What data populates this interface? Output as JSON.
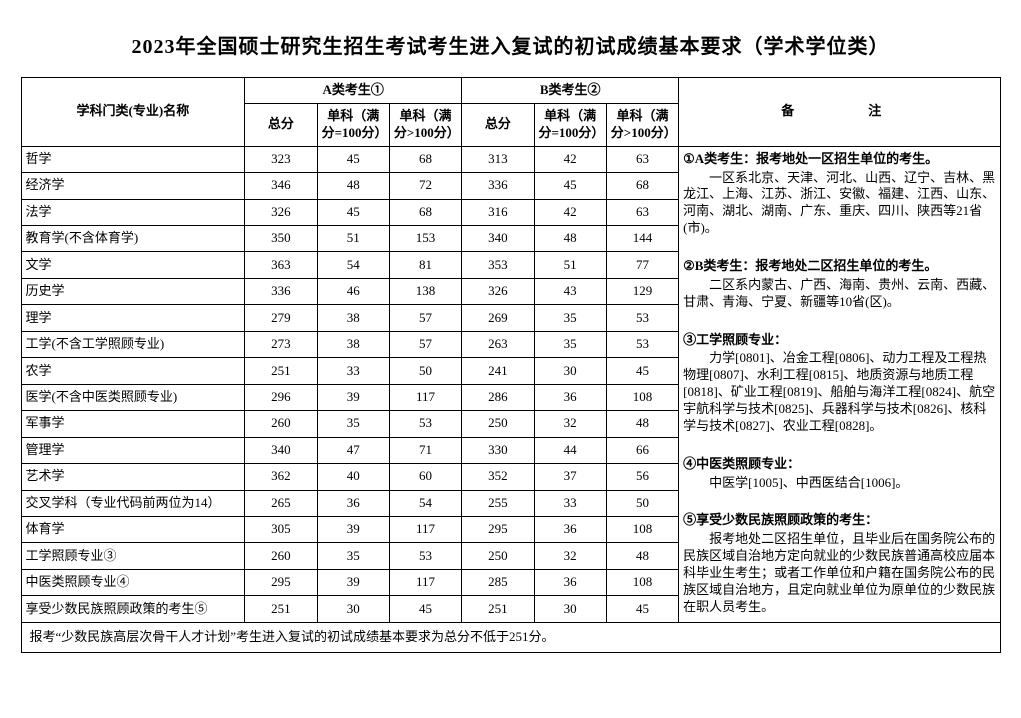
{
  "title": "2023年全国硕士研究生招生考试考生进入复试的初试成绩基本要求（学术学位类）",
  "headers": {
    "subject": "学科门类(专业)名称",
    "groupA": "A类考生①",
    "groupB": "B类考生②",
    "total": "总分",
    "sub100": "单科（满分=100分）",
    "subOver100": "单科（满分>100分）",
    "notes": "备　　注"
  },
  "rows": [
    {
      "name": "哲学",
      "a": [
        "323",
        "45",
        "68"
      ],
      "b": [
        "313",
        "42",
        "63"
      ]
    },
    {
      "name": "经济学",
      "a": [
        "346",
        "48",
        "72"
      ],
      "b": [
        "336",
        "45",
        "68"
      ]
    },
    {
      "name": "法学",
      "a": [
        "326",
        "45",
        "68"
      ],
      "b": [
        "316",
        "42",
        "63"
      ]
    },
    {
      "name": "教育学(不含体育学)",
      "a": [
        "350",
        "51",
        "153"
      ],
      "b": [
        "340",
        "48",
        "144"
      ]
    },
    {
      "name": "文学",
      "a": [
        "363",
        "54",
        "81"
      ],
      "b": [
        "353",
        "51",
        "77"
      ]
    },
    {
      "name": "历史学",
      "a": [
        "336",
        "46",
        "138"
      ],
      "b": [
        "326",
        "43",
        "129"
      ]
    },
    {
      "name": "理学",
      "a": [
        "279",
        "38",
        "57"
      ],
      "b": [
        "269",
        "35",
        "53"
      ]
    },
    {
      "name": "工学(不含工学照顾专业)",
      "a": [
        "273",
        "38",
        "57"
      ],
      "b": [
        "263",
        "35",
        "53"
      ]
    },
    {
      "name": "农学",
      "a": [
        "251",
        "33",
        "50"
      ],
      "b": [
        "241",
        "30",
        "45"
      ]
    },
    {
      "name": "医学(不含中医类照顾专业)",
      "a": [
        "296",
        "39",
        "117"
      ],
      "b": [
        "286",
        "36",
        "108"
      ]
    },
    {
      "name": "军事学",
      "a": [
        "260",
        "35",
        "53"
      ],
      "b": [
        "250",
        "32",
        "48"
      ]
    },
    {
      "name": "管理学",
      "a": [
        "340",
        "47",
        "71"
      ],
      "b": [
        "330",
        "44",
        "66"
      ]
    },
    {
      "name": "艺术学",
      "a": [
        "362",
        "40",
        "60"
      ],
      "b": [
        "352",
        "37",
        "56"
      ]
    },
    {
      "name": "交叉学科（专业代码前两位为14）",
      "a": [
        "265",
        "36",
        "54"
      ],
      "b": [
        "255",
        "33",
        "50"
      ]
    },
    {
      "name": "体育学",
      "a": [
        "305",
        "39",
        "117"
      ],
      "b": [
        "295",
        "36",
        "108"
      ]
    },
    {
      "name": "工学照顾专业③",
      "a": [
        "260",
        "35",
        "53"
      ],
      "b": [
        "250",
        "32",
        "48"
      ]
    },
    {
      "name": "中医类照顾专业④",
      "a": [
        "295",
        "39",
        "117"
      ],
      "b": [
        "285",
        "36",
        "108"
      ]
    },
    {
      "name": "享受少数民族照顾政策的考生⑤",
      "a": [
        "251",
        "30",
        "45"
      ],
      "b": [
        "251",
        "30",
        "45"
      ]
    }
  ],
  "footnote": "报考“少数民族高层次骨干人才计划”考生进入复试的初试成绩基本要求为总分不低于251分。",
  "notes": {
    "n1_lead": "①A类考生：报考地处一区招生单位的考生。",
    "n1_body": "一区系北京、天津、河北、山西、辽宁、吉林、黑龙江、上海、江苏、浙江、安徽、福建、江西、山东、河南、湖北、湖南、广东、重庆、四川、陕西等21省(市)。",
    "n2_lead": "②B类考生：报考地处二区招生单位的考生。",
    "n2_body": "二区系内蒙古、广西、海南、贵州、云南、西藏、甘肃、青海、宁夏、新疆等10省(区)。",
    "n3_lead": "③工学照顾专业：",
    "n3_body": "力学[0801]、冶金工程[0806]、动力工程及工程热物理[0807]、水利工程[0815]、地质资源与地质工程[0818]、矿业工程[0819]、船舶与海洋工程[0824]、航空宇航科学与技术[0825]、兵器科学与技术[0826]、核科学与技术[0827]、农业工程[0828]。",
    "n4_lead": "④中医类照顾专业：",
    "n4_body": "中医学[1005]、中西医结合[1006]。",
    "n5_lead": "⑤享受少数民族照顾政策的考生：",
    "n5_body": "报考地处二区招生单位，且毕业后在国务院公布的民族区域自治地方定向就业的少数民族普通高校应届本科毕业生考生；或者工作单位和户籍在国务院公布的民族区域自治地方，且定向就业单位为原单位的少数民族在职人员考生。"
  },
  "style": {
    "border_color": "#000000",
    "background": "#ffffff",
    "title_fontsize": 20,
    "cell_fontsize": 13,
    "notes_fontsize": 12.5
  }
}
